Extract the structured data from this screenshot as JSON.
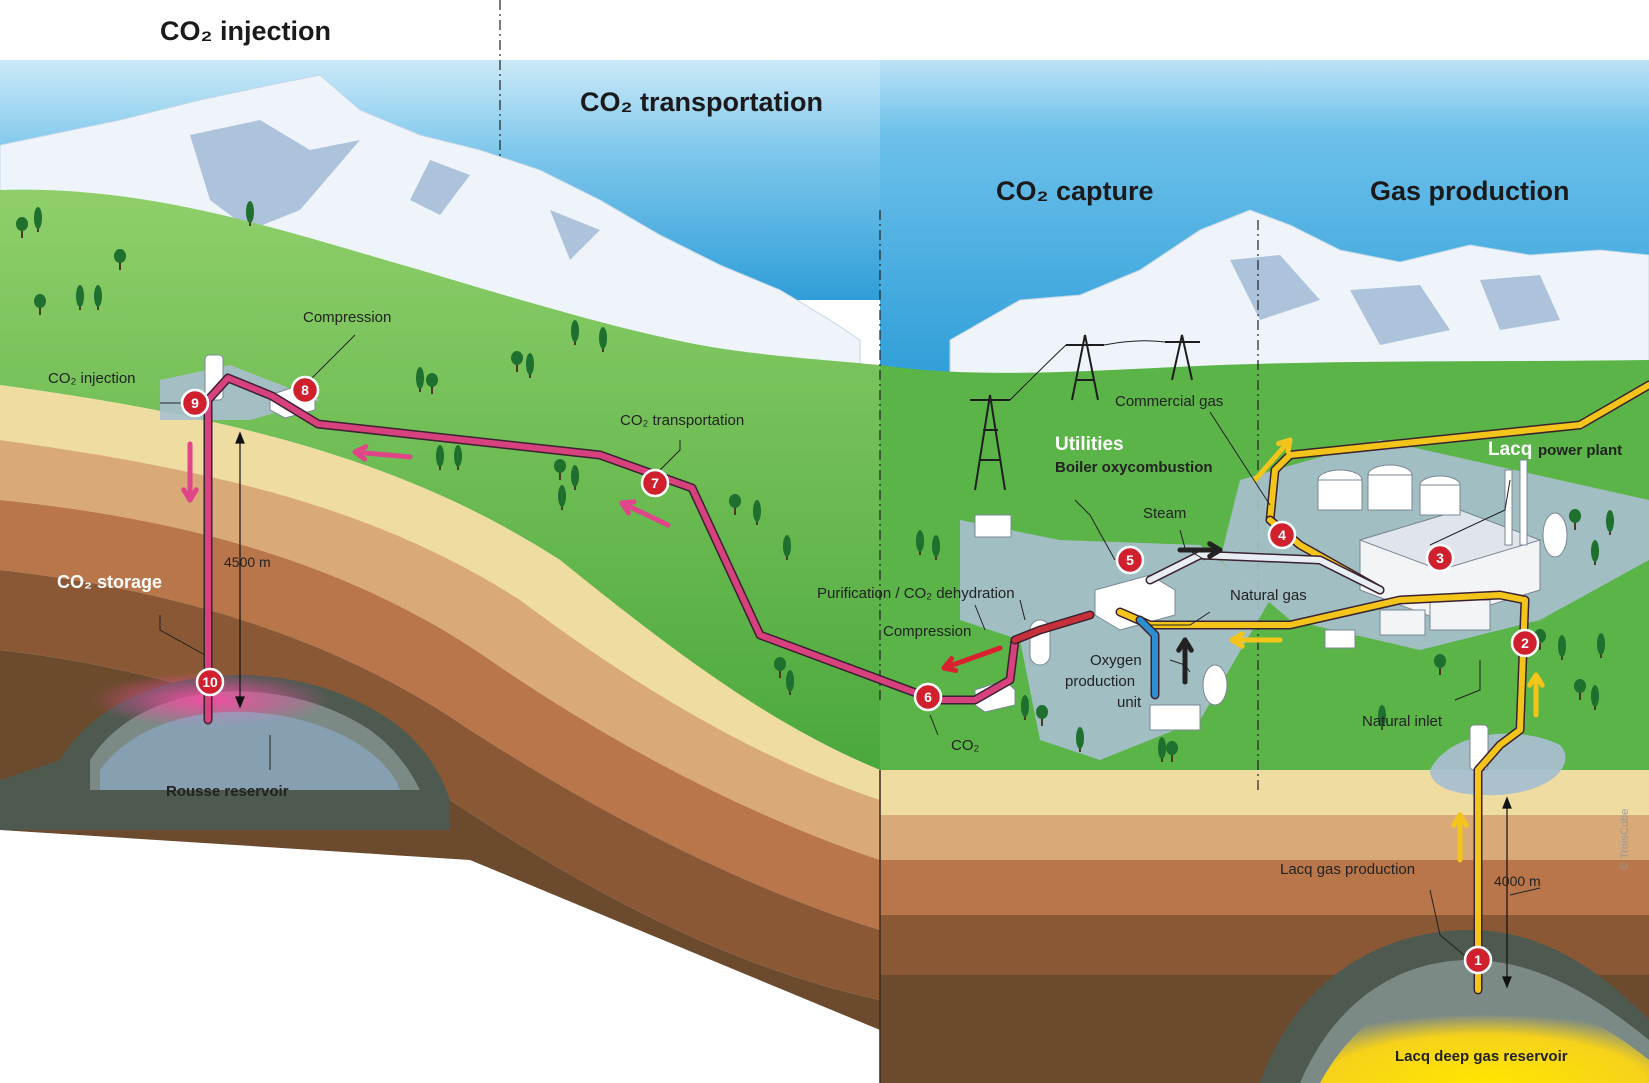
{
  "sections": {
    "injection": "CO₂ injection",
    "transportation": "CO₂ transportation",
    "capture": "CO₂ capture",
    "gas_production": "Gas production"
  },
  "labels": {
    "compression_top": "Compression",
    "co2_injection": "CO₂ injection",
    "co2_transportation": "CO₂ transportation",
    "co2_storage": "CO₂ storage",
    "depth_storage": "4500 m",
    "rousse_reservoir": "Rousse reservoir",
    "commercial_gas": "Commercial gas",
    "utilities": "Utilities",
    "boiler": "Boiler oxycombustion",
    "steam": "Steam",
    "lacq": "Lacq",
    "power_plant": "power plant",
    "purification": "Purification / CO₂ dehydration",
    "natural_gas": "Natural gas",
    "compression_capture": "Compression",
    "oxygen_1": "Oxygen",
    "oxygen_2": "production",
    "oxygen_3": "unit",
    "co2_pipe": "CO₂",
    "natural_inlet": "Natural inlet",
    "lacq_gas_production": "Lacq gas production",
    "depth_gas": "4000 m",
    "lacq_deep_reservoir": "Lacq deep gas reservoir",
    "credit": "© TroisCube"
  },
  "steps": [
    "1",
    "2",
    "3",
    "4",
    "5",
    "6",
    "7",
    "8",
    "9",
    "10"
  ],
  "colors": {
    "sky": "#3fa9df",
    "grass": "#5cb44a",
    "co2_pipe": "#d6417e",
    "gas_pipe": "#f3c51a",
    "marker": "#d0202e",
    "oxygen_pipe": "#2c8fcf"
  }
}
